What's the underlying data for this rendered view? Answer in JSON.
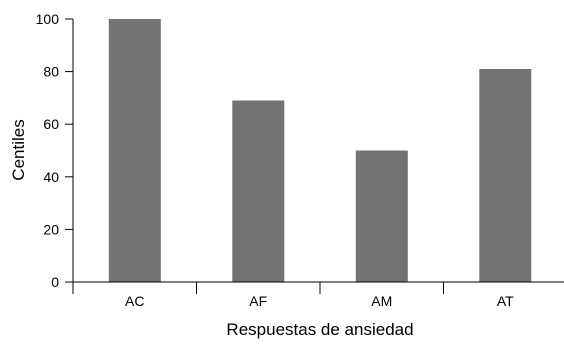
{
  "chart_data": {
    "type": "bar",
    "title": "",
    "xlabel": "Respuestas de ansiedad",
    "ylabel": "Centiles",
    "categories": [
      "AC",
      "AF",
      "AM",
      "AT"
    ],
    "values": [
      100,
      69,
      50,
      81
    ],
    "ylim": [
      0,
      100
    ],
    "yticks": [
      0,
      20,
      40,
      60,
      80,
      100
    ],
    "ytick_labels": [
      "0",
      "20",
      "40",
      "60",
      "80",
      "100"
    ],
    "bar_color": "#737373",
    "grid": false,
    "legend": "none"
  }
}
